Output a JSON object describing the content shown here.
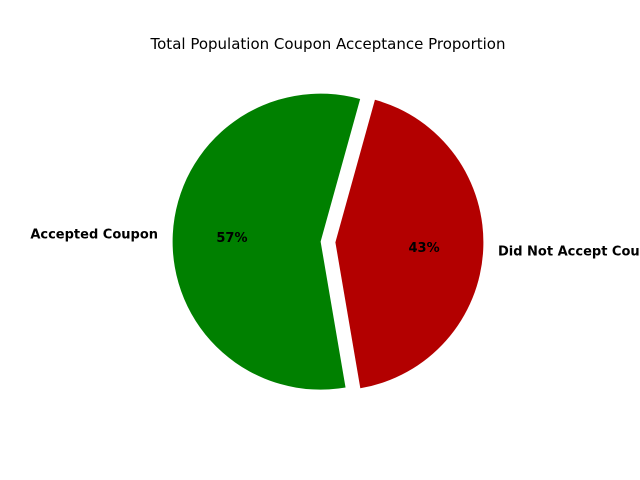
{
  "chart_data": {
    "type": "pie",
    "title": "Total Population Coupon Acceptance Proportion",
    "slices": [
      {
        "label": "Accepted Coupon",
        "value": 57,
        "pct_label": "57%",
        "color": "#008000"
      },
      {
        "label": "Did Not Accept Coupon",
        "value": 43,
        "pct_label": "43%",
        "color": "#b30000"
      }
    ]
  }
}
